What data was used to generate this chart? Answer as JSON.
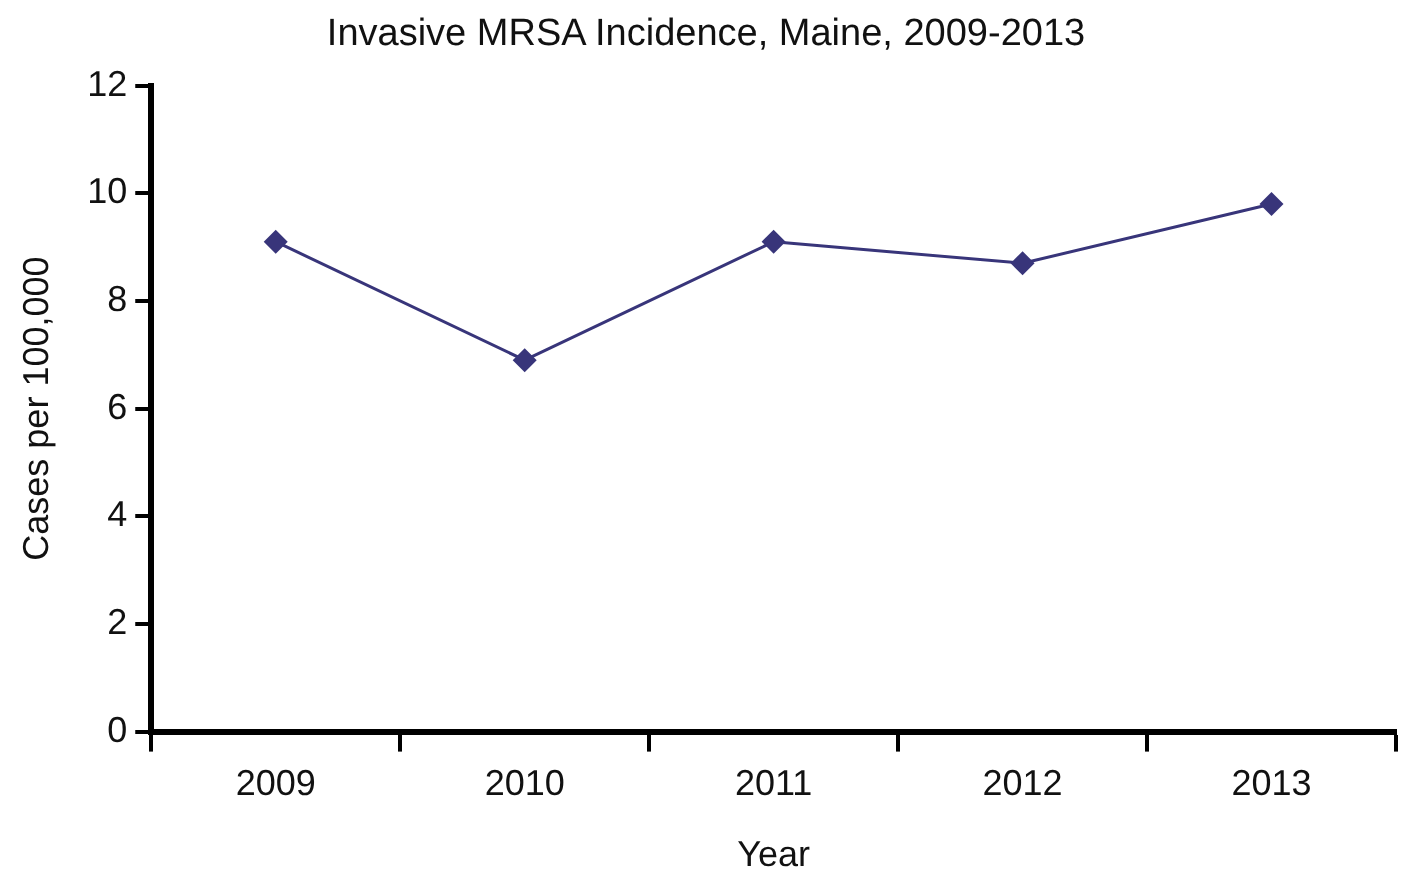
{
  "chart_data": {
    "type": "line",
    "title": "Invasive MRSA Incidence, Maine, 2009-2013",
    "xlabel": "Year",
    "ylabel": "Cases per 100,000",
    "categories": [
      "2009",
      "2010",
      "2011",
      "2012",
      "2013"
    ],
    "series": [
      {
        "color": "#38357a",
        "values": [
          9.1,
          6.9,
          9.1,
          8.7,
          9.8
        ]
      }
    ],
    "ylim": [
      0,
      12
    ],
    "yticks": [
      0,
      2,
      4,
      6,
      8,
      10,
      12
    ],
    "grid": false,
    "legend": false,
    "marker": "diamond",
    "line_style": "solid"
  }
}
